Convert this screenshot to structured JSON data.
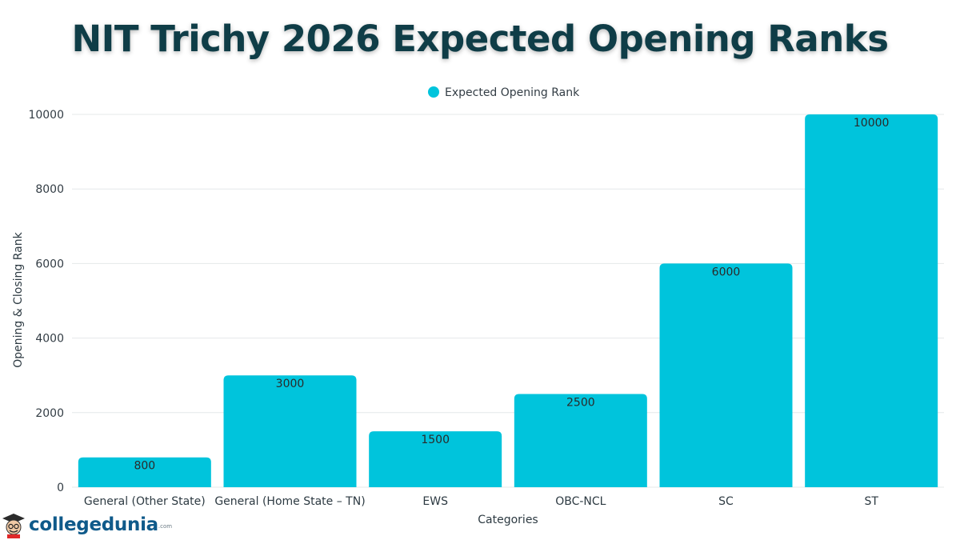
{
  "chart_data": {
    "type": "bar",
    "title": "NIT Trichy 2026 Expected Opening Ranks",
    "categories": [
      "General (Other State)",
      "General (Home State – TN)",
      "EWS",
      "OBC-NCL",
      "SC",
      "ST"
    ],
    "series": [
      {
        "name": "Expected Opening Rank",
        "values": [
          800,
          3000,
          1500,
          2500,
          6000,
          10000
        ]
      }
    ],
    "xlabel": "Categories",
    "ylabel": "Opening & Closing Rank",
    "ylim": [
      0,
      10000
    ],
    "yticks": [
      0,
      2000,
      4000,
      6000,
      8000,
      10000
    ],
    "grid": true,
    "legend": "top-center",
    "colors": {
      "bar": "#00c4dc",
      "grid": "#e4e8ea",
      "title": "#0f3d47"
    }
  },
  "branding": {
    "logo_text": "collegedunia",
    "logo_suffix": ".com"
  }
}
